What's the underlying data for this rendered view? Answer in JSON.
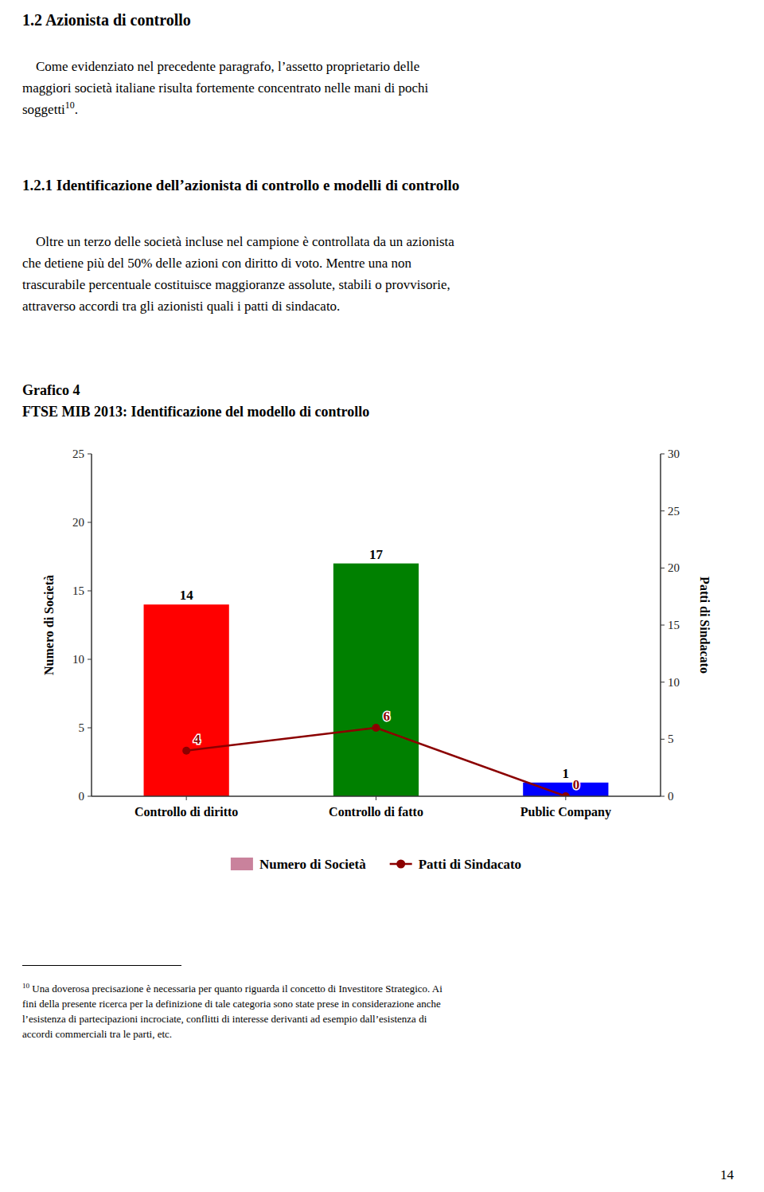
{
  "page": {
    "title": "1.2 Azionista di controllo",
    "paragraph1": [
      "    Come evidenziato nel precedente paragrafo, l’assetto proprietario delle",
      "maggiori società italiane risulta fortemente concentrato nelle mani di pochi",
      "soggetti"
    ],
    "paragraph1_superscript": "10",
    "paragraph1_end": ".",
    "heading": "1.2.1 Identificazione dell’azionista di controllo e modelli di controllo",
    "paragraph2": [
      "    Oltre un terzo delle società incluse nel campione è controllata da un azionista",
      "che detiene più del 50% delle azioni con diritto di voto. Mentre una non",
      "trascurabile percentuale costituisce maggioranze assolute, stabili o provvisorie,",
      "attraverso accordi tra gli azionisti quali i patti di sindacato."
    ],
    "footnote_superscript": "10",
    "footnote": [
      " Una doverosa precisazione è necessaria per quanto riguarda il concetto di Investitore Strategico. Ai",
      "fini della presente ricerca per la definizione di tale categoria sono state prese in considerazione anche",
      "l’esistenza di partecipazioni incrociate, conflitti di interesse derivanti ad esempio dall’esistenza di",
      "accordi commerciali tra le parti, etc."
    ],
    "page_number": "14"
  },
  "chart_data": {
    "type": "bar",
    "title": "Grafico 4",
    "subtitle": "FTSE MIB 2013: Identificazione del modello di controllo",
    "categories": [
      "Controllo di diritto",
      "Controllo di fatto",
      "Public Company"
    ],
    "series": [
      {
        "name": "Numero di Società",
        "type": "bar",
        "color": "#c9829c",
        "colors": [
          "#ff0000",
          "#008000",
          "#0000ff"
        ],
        "values": [
          14,
          17,
          1
        ],
        "data_labels": true
      },
      {
        "name": "Patti di Sindacato",
        "type": "line",
        "axis": "y2",
        "color": "#8b0000",
        "marker": "circle",
        "line_style": "solid",
        "values": [
          4,
          6,
          0
        ],
        "data_labels": true
      }
    ],
    "ylabel": "Numero di Società",
    "y2label": "Patti di Sindacato",
    "ylim": [
      0,
      25
    ],
    "yticks": [
      0,
      5,
      10,
      15,
      20,
      25
    ],
    "y2lim": [
      0,
      30
    ],
    "y2ticks": [
      0,
      5,
      10,
      15,
      20,
      25,
      30
    ],
    "grid": false,
    "legend": "bottom"
  }
}
